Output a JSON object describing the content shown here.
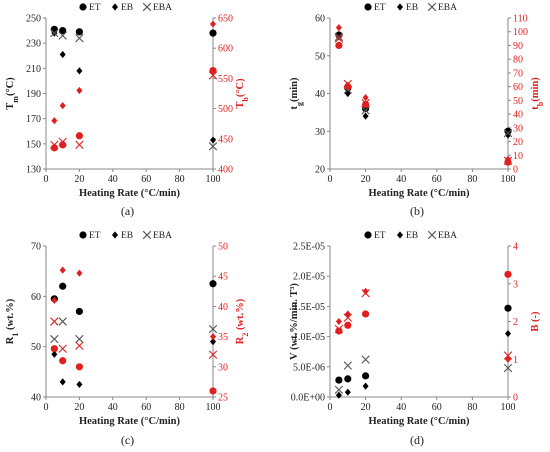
{
  "colors": {
    "primary": "#000000",
    "secondary": "#e02020",
    "cross_primary": "#555555",
    "cross_secondary": "#e02020",
    "axis": "#888888"
  },
  "chart_data": [
    {
      "type": "scatter",
      "panel_label": "(a)",
      "xlabel": "Heating Rate (°C/min)",
      "ylabel": "Tm(°C)",
      "ylabel_main": "T",
      "ylabel_sub": "m",
      "ylabel_rest": "(°C)",
      "y2label": "Tb(°C)",
      "y2label_main": "T",
      "y2label_sub": "b",
      "y2label_rest": "(°C)",
      "xlim": [
        0,
        100
      ],
      "xticks": [
        0,
        20,
        40,
        60,
        80,
        100
      ],
      "xtick_labels": [
        "0",
        "20",
        "40",
        "60",
        "80",
        "100"
      ],
      "ylim": [
        130,
        250
      ],
      "yticks": [
        130,
        150,
        170,
        190,
        210,
        230,
        250
      ],
      "ytick_labels": [
        "130",
        "150",
        "170",
        "190",
        "210",
        "230",
        "250"
      ],
      "y2lim": [
        400,
        650
      ],
      "y2ticks": [
        400,
        450,
        500,
        550,
        600,
        650
      ],
      "y2tick_labels": [
        "400",
        "450",
        "500",
        "550",
        "600",
        "650"
      ],
      "legend": [
        "ET",
        "EB",
        "EBA"
      ],
      "series": [
        {
          "name": "ET",
          "axis": "left",
          "marker": "circle",
          "x": [
            5,
            10,
            20,
            100
          ],
          "y": [
            241,
            240,
            239,
            238
          ]
        },
        {
          "name": "EB",
          "axis": "left",
          "marker": "diamond",
          "x": [
            5,
            10,
            20,
            100
          ],
          "y": [
            238,
            221,
            208,
            153
          ]
        },
        {
          "name": "EBA",
          "axis": "left",
          "marker": "cross",
          "x": [
            5,
            10,
            20,
            100
          ],
          "y": [
            238,
            236,
            234,
            148
          ]
        },
        {
          "name": "ET",
          "axis": "right",
          "marker": "circle",
          "x": [
            5,
            10,
            20,
            100
          ],
          "y": [
            435,
            440,
            455,
            563
          ]
        },
        {
          "name": "EB",
          "axis": "right",
          "marker": "diamond",
          "x": [
            5,
            10,
            20,
            100
          ],
          "y": [
            480,
            505,
            530,
            640
          ]
        },
        {
          "name": "EBA",
          "axis": "right",
          "marker": "cross",
          "x": [
            5,
            10,
            20,
            100
          ],
          "y": [
            440,
            445,
            440,
            555
          ]
        }
      ]
    },
    {
      "type": "scatter",
      "panel_label": "(b)",
      "xlabel": "Heating Rate (°C/min)",
      "ylabel": "tg(min)",
      "ylabel_main": "t",
      "ylabel_sub": "g",
      "ylabel_rest": "(min)",
      "y2label": "tb(min)",
      "y2label_main": "t",
      "y2label_sub": "b",
      "y2label_rest": "(min)",
      "xlim": [
        0,
        100
      ],
      "xticks": [
        0,
        20,
        40,
        60,
        80,
        100
      ],
      "xtick_labels": [
        "0",
        "20",
        "40",
        "60",
        "80",
        "100"
      ],
      "ylim": [
        20,
        60
      ],
      "yticks": [
        20,
        30,
        40,
        50,
        60
      ],
      "ytick_labels": [
        "20",
        "30",
        "40",
        "50",
        "60"
      ],
      "y2lim": [
        0,
        110
      ],
      "y2ticks": [
        0,
        10,
        20,
        30,
        40,
        50,
        60,
        70,
        80,
        90,
        100,
        110
      ],
      "y2tick_labels": [
        "0",
        "10",
        "20",
        "30",
        "40",
        "50",
        "60",
        "70",
        "80",
        "90",
        "100",
        "110"
      ],
      "legend": [
        "ET",
        "EB",
        "EBA"
      ],
      "series": [
        {
          "name": "ET",
          "axis": "left",
          "marker": "circle",
          "x": [
            5,
            10,
            20,
            100
          ],
          "y": [
            55.5,
            41.5,
            36,
            30
          ]
        },
        {
          "name": "EB",
          "axis": "left",
          "marker": "diamond",
          "x": [
            5,
            10,
            20,
            100
          ],
          "y": [
            55,
            40,
            34,
            29
          ]
        },
        {
          "name": "EBA",
          "axis": "left",
          "marker": "cross",
          "x": [
            5,
            10,
            20,
            100
          ],
          "y": [
            55,
            41,
            35.5,
            29.5
          ]
        },
        {
          "name": "ET",
          "axis": "right",
          "marker": "circle",
          "x": [
            5,
            10,
            20,
            100
          ],
          "y": [
            90,
            60,
            47,
            5
          ]
        },
        {
          "name": "EB",
          "axis": "right",
          "marker": "diamond",
          "x": [
            5,
            10,
            20,
            100
          ],
          "y": [
            103,
            61,
            52,
            7
          ]
        },
        {
          "name": "EBA",
          "axis": "right",
          "marker": "cross",
          "x": [
            5,
            10,
            20,
            100
          ],
          "y": [
            95,
            62,
            48,
            6
          ]
        }
      ]
    },
    {
      "type": "scatter",
      "panel_label": "(c)",
      "xlabel": "Heating Rate (°C/min)",
      "ylabel": "R1 (wt.%)",
      "ylabel_main": "R",
      "ylabel_sub": "1",
      "ylabel_rest": " (wt.%)",
      "y2label": "R2 (wt.%)",
      "y2label_main": "R",
      "y2label_sub": "2",
      "y2label_rest": " (wt.%)",
      "xlim": [
        0,
        100
      ],
      "xticks": [
        0,
        20,
        40,
        60,
        80,
        100
      ],
      "xtick_labels": [
        "0",
        "20",
        "40",
        "60",
        "80",
        "100"
      ],
      "ylim": [
        40,
        70
      ],
      "yticks": [
        40,
        50,
        60,
        70
      ],
      "ytick_labels": [
        "40",
        "50",
        "60",
        "70"
      ],
      "y2lim": [
        25,
        50
      ],
      "y2ticks": [
        25,
        30,
        35,
        40,
        45,
        50
      ],
      "y2tick_labels": [
        "25",
        "30",
        "35",
        "40",
        "45",
        "50"
      ],
      "legend": [
        "ET",
        "EB",
        "EBA"
      ],
      "series": [
        {
          "name": "ET",
          "axis": "left",
          "marker": "circle",
          "x": [
            5,
            10,
            20,
            100
          ],
          "y": [
            59.5,
            62,
            57,
            62.5
          ]
        },
        {
          "name": "EB",
          "axis": "left",
          "marker": "diamond",
          "x": [
            5,
            10,
            20,
            100
          ],
          "y": [
            48.5,
            43,
            42.5,
            51
          ]
        },
        {
          "name": "EBA",
          "axis": "left",
          "marker": "cross",
          "x": [
            5,
            10,
            20,
            100
          ],
          "y": [
            51.5,
            55,
            51.5,
            53.5
          ]
        },
        {
          "name": "ET",
          "axis": "right",
          "marker": "circle",
          "x": [
            5,
            10,
            20,
            100
          ],
          "y": [
            33,
            31,
            30,
            26
          ]
        },
        {
          "name": "EB",
          "axis": "right",
          "marker": "diamond",
          "x": [
            5,
            10,
            20,
            100
          ],
          "y": [
            41,
            46,
            45.5,
            35
          ]
        },
        {
          "name": "EBA",
          "axis": "right",
          "marker": "cross",
          "x": [
            5,
            10,
            20,
            100
          ],
          "y": [
            37.5,
            33,
            33.5,
            32
          ]
        }
      ]
    },
    {
      "type": "scatter",
      "panel_label": "(d)",
      "xlabel": "Heating Rate (°C/min)",
      "ylabel": "V (wt.%/min. T³)",
      "ylabel_main": "V",
      "ylabel_sub": "",
      "ylabel_rest": " (wt.%/min. T³)",
      "y2label": "B (-)",
      "y2label_main": "B",
      "y2label_sub": "",
      "y2label_rest": " (-)",
      "xlim": [
        0,
        100
      ],
      "xticks": [
        0,
        20,
        40,
        60,
        80,
        100
      ],
      "xtick_labels": [
        "0",
        "20",
        "40",
        "60",
        "80",
        "100"
      ],
      "ylim": [
        0,
        2.5e-05
      ],
      "yticks": [
        0,
        5e-06,
        1e-05,
        1.5e-05,
        2e-05,
        2.5e-05
      ],
      "ytick_labels": [
        "0.0E+00",
        "5.0E-06",
        "1.0E-05",
        "1.5E-05",
        "2.0E-05",
        "2.5E-05"
      ],
      "y2lim": [
        0,
        4
      ],
      "y2ticks": [
        0,
        1,
        2,
        3,
        4
      ],
      "y2tick_labels": [
        "0",
        "1",
        "2",
        "3",
        "4"
      ],
      "legend": [
        "ET",
        "EB",
        "EBA"
      ],
      "series": [
        {
          "name": "ET",
          "axis": "left",
          "marker": "circle",
          "x": [
            5,
            10,
            20,
            100
          ],
          "y": [
            2.8e-06,
            3e-06,
            3.5e-06,
            1.47e-05
          ]
        },
        {
          "name": "EB",
          "axis": "left",
          "marker": "diamond",
          "x": [
            5,
            10,
            20,
            100
          ],
          "y": [
            3e-07,
            8e-07,
            1.8e-06,
            1.05e-05
          ]
        },
        {
          "name": "EBA",
          "axis": "left",
          "marker": "cross",
          "x": [
            5,
            10,
            20,
            100
          ],
          "y": [
            1.2e-06,
            5.2e-06,
            6.2e-06,
            4.8e-06
          ]
        },
        {
          "name": "ET",
          "axis": "right",
          "marker": "circle",
          "x": [
            5,
            10,
            20,
            100
          ],
          "y": [
            1.75,
            1.9,
            2.2,
            3.25
          ]
        },
        {
          "name": "EB",
          "axis": "right",
          "marker": "diamond",
          "x": [
            5,
            10,
            20,
            100
          ],
          "y": [
            2.0,
            2.2,
            2.8,
            1.0
          ]
        },
        {
          "name": "EBA",
          "axis": "right",
          "marker": "cross",
          "x": [
            5,
            10,
            20,
            100
          ],
          "y": [
            1.8,
            2.1,
            2.75,
            1.1
          ]
        }
      ]
    }
  ]
}
